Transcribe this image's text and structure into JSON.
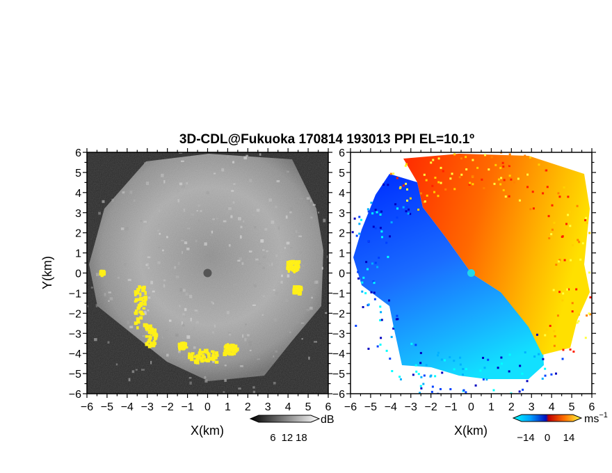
{
  "figure": {
    "title": "3D-CDL@Fukuoka 170814 193013 PPI EL=10.1º"
  },
  "chart_data": [
    {
      "type": "heatmap",
      "panel": "left",
      "quantity": "SNR",
      "xlabel": "X(km)",
      "ylabel": "Y(km)",
      "xlim": [
        -6,
        6
      ],
      "ylim": [
        -6,
        6
      ],
      "x_ticks": [
        -6,
        -5,
        -4,
        -3,
        -2,
        -1,
        0,
        1,
        2,
        3,
        4,
        5,
        6
      ],
      "y_ticks": [
        -6,
        -5,
        -4,
        -3,
        -2,
        -1,
        0,
        1,
        2,
        3,
        4,
        5,
        6
      ],
      "tick_labels": [
        "−6",
        "−5",
        "−4",
        "−3",
        "−2",
        "−1",
        "0",
        "1",
        "2",
        "3",
        "4",
        "5",
        "6"
      ],
      "colormap": "grayscale",
      "colorbar": {
        "ticks": [
          6,
          12,
          18
        ],
        "tick_labels": [
          "6",
          "12",
          "18"
        ],
        "unit": "dB"
      },
      "highlight_color": "#ffee00",
      "description_of_field": "radial grayscale echo field centred on the lidar, strongest to the south"
    },
    {
      "type": "heatmap",
      "panel": "right",
      "quantity": "Doppler velocity",
      "xlabel": "X(km)",
      "ylabel": "",
      "xlim": [
        -6,
        6
      ],
      "ylim": [
        -6,
        6
      ],
      "x_ticks": [
        -6,
        -5,
        -4,
        -3,
        -2,
        -1,
        0,
        1,
        2,
        3,
        4,
        5,
        6
      ],
      "y_ticks": [
        -6,
        -5,
        -4,
        -3,
        -2,
        -1,
        0,
        1,
        2,
        3,
        4,
        5,
        6
      ],
      "tick_labels": [
        "−6",
        "−5",
        "−4",
        "−3",
        "−2",
        "−1",
        "0",
        "1",
        "2",
        "3",
        "4",
        "5",
        "6"
      ],
      "colormap": "blue-to-red diverging",
      "colorbar": {
        "ticks": [
          -14,
          0,
          14
        ],
        "tick_labels": [
          "−14",
          "0",
          "14"
        ],
        "unit": "ms⁻¹"
      },
      "site_color": "#22d8e8"
    }
  ],
  "colors": {
    "velocity_scale": [
      "#00ffff",
      "#00b0ff",
      "#0040ff",
      "#0000c0",
      "#c00000",
      "#ff2000",
      "#ff8000",
      "#ffd000",
      "#ffff40"
    ],
    "snr_scale": [
      "#000000",
      "#ffffff"
    ]
  }
}
